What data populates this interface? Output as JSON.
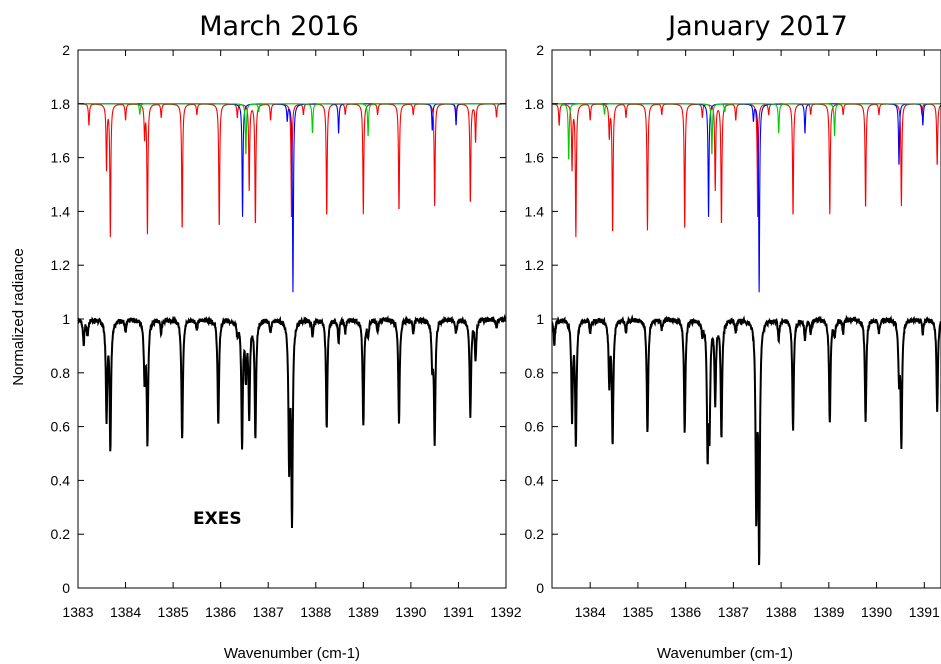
{
  "chart_data": [
    {
      "type": "line",
      "title": "March 2016",
      "xlabel": "Wavenumber (cm-1)",
      "ylabel": "Normalized radiance",
      "xlim": [
        1383,
        1392
      ],
      "ylim": [
        0,
        2
      ],
      "xticks": [
        1383,
        1384,
        1385,
        1386,
        1387,
        1388,
        1389,
        1390,
        1391,
        1392
      ],
      "yticks": [
        0,
        0.2,
        0.4,
        0.6,
        0.8,
        1,
        1.2,
        1.4,
        1.6,
        1.8,
        2
      ],
      "annotation": "EXES",
      "model": {
        "baseline": 1.8,
        "series": [
          {
            "color": "#ff0000",
            "lines": [
              {
                "x": 1383.23,
                "depth": 0.08
              },
              {
                "x": 1383.6,
                "depth": 0.24
              },
              {
                "x": 1383.68,
                "depth": 0.49
              },
              {
                "x": 1384.0,
                "depth": 0.06
              },
              {
                "x": 1384.4,
                "depth": 0.12
              },
              {
                "x": 1384.46,
                "depth": 0.48
              },
              {
                "x": 1384.75,
                "depth": 0.05
              },
              {
                "x": 1385.19,
                "depth": 0.47
              },
              {
                "x": 1385.5,
                "depth": 0.04
              },
              {
                "x": 1385.97,
                "depth": 0.46
              },
              {
                "x": 1386.35,
                "depth": 0.05
              },
              {
                "x": 1386.6,
                "depth": 0.32
              },
              {
                "x": 1386.73,
                "depth": 0.45
              },
              {
                "x": 1387.05,
                "depth": 0.06
              },
              {
                "x": 1387.49,
                "depth": 0.43
              },
              {
                "x": 1387.74,
                "depth": 0.04
              },
              {
                "x": 1388.23,
                "depth": 0.42
              },
              {
                "x": 1388.62,
                "depth": 0.04
              },
              {
                "x": 1389.0,
                "depth": 0.41
              },
              {
                "x": 1389.3,
                "depth": 0.04
              },
              {
                "x": 1389.75,
                "depth": 0.4
              },
              {
                "x": 1390.05,
                "depth": 0.04
              },
              {
                "x": 1390.5,
                "depth": 0.38
              },
              {
                "x": 1390.95,
                "depth": 0.04
              },
              {
                "x": 1391.25,
                "depth": 0.37
              },
              {
                "x": 1391.36,
                "depth": 0.14
              },
              {
                "x": 1391.8,
                "depth": 0.05
              }
            ]
          },
          {
            "color": "#0000ff",
            "lines": [
              {
                "x": 1386.46,
                "depth": 0.42
              },
              {
                "x": 1387.52,
                "depth": 0.7
              },
              {
                "x": 1388.48,
                "depth": 0.11
              },
              {
                "x": 1390.45,
                "depth": 0.1
              },
              {
                "x": 1390.95,
                "depth": 0.08
              },
              {
                "x": 1387.4,
                "depth": 0.06
              }
            ]
          },
          {
            "color": "#00cc00",
            "lines": [
              {
                "x": 1384.3,
                "depth": 0.04
              },
              {
                "x": 1386.53,
                "depth": 0.19
              },
              {
                "x": 1387.93,
                "depth": 0.11
              },
              {
                "x": 1389.1,
                "depth": 0.12
              },
              {
                "x": 1386.8,
                "depth": 0.03
              }
            ]
          }
        ]
      },
      "observed": {
        "name": "EXES",
        "color": "#000000",
        "baseline": 1.0,
        "lines": [
          {
            "x": 1383.12,
            "depth": 0.09
          },
          {
            "x": 1383.2,
            "depth": 0.06
          },
          {
            "x": 1383.6,
            "depth": 0.36
          },
          {
            "x": 1383.68,
            "depth": 0.47
          },
          {
            "x": 1384.0,
            "depth": 0.05
          },
          {
            "x": 1384.4,
            "depth": 0.22
          },
          {
            "x": 1384.46,
            "depth": 0.45
          },
          {
            "x": 1384.75,
            "depth": 0.05
          },
          {
            "x": 1385.19,
            "depth": 0.45
          },
          {
            "x": 1385.5,
            "depth": 0.04
          },
          {
            "x": 1385.95,
            "depth": 0.4
          },
          {
            "x": 1386.35,
            "depth": 0.05
          },
          {
            "x": 1386.45,
            "depth": 0.47
          },
          {
            "x": 1386.53,
            "depth": 0.2
          },
          {
            "x": 1386.6,
            "depth": 0.35
          },
          {
            "x": 1386.73,
            "depth": 0.43
          },
          {
            "x": 1387.05,
            "depth": 0.05
          },
          {
            "x": 1387.44,
            "depth": 0.52
          },
          {
            "x": 1387.5,
            "depth": 0.74
          },
          {
            "x": 1387.93,
            "depth": 0.07
          },
          {
            "x": 1388.23,
            "depth": 0.4
          },
          {
            "x": 1388.48,
            "depth": 0.08
          },
          {
            "x": 1388.62,
            "depth": 0.05
          },
          {
            "x": 1389.0,
            "depth": 0.4
          },
          {
            "x": 1389.1,
            "depth": 0.06
          },
          {
            "x": 1389.3,
            "depth": 0.05
          },
          {
            "x": 1389.75,
            "depth": 0.38
          },
          {
            "x": 1390.05,
            "depth": 0.05
          },
          {
            "x": 1390.45,
            "depth": 0.16
          },
          {
            "x": 1390.5,
            "depth": 0.45
          },
          {
            "x": 1390.95,
            "depth": 0.05
          },
          {
            "x": 1391.25,
            "depth": 0.36
          },
          {
            "x": 1391.36,
            "depth": 0.15
          },
          {
            "x": 1391.8,
            "depth": 0.03
          }
        ]
      }
    },
    {
      "type": "line",
      "title": "January 2017",
      "xlabel": "Wavenumber (cm-1)",
      "ylabel": "",
      "xlim": [
        1383.2,
        1391.35
      ],
      "ylim": [
        0,
        2
      ],
      "xticks": [
        1384,
        1385,
        1386,
        1387,
        1388,
        1389,
        1390,
        1391
      ],
      "yticks": [
        0,
        0.2,
        0.4,
        0.6,
        0.8,
        1,
        1.2,
        1.4,
        1.6,
        1.8,
        2
      ],
      "model": {
        "baseline": 1.8,
        "series": [
          {
            "color": "#ff0000",
            "lines": [
              {
                "x": 1383.35,
                "depth": 0.08
              },
              {
                "x": 1383.62,
                "depth": 0.24
              },
              {
                "x": 1383.7,
                "depth": 0.49
              },
              {
                "x": 1384.0,
                "depth": 0.06
              },
              {
                "x": 1384.4,
                "depth": 0.12
              },
              {
                "x": 1384.47,
                "depth": 0.48
              },
              {
                "x": 1384.75,
                "depth": 0.05
              },
              {
                "x": 1385.2,
                "depth": 0.47
              },
              {
                "x": 1385.5,
                "depth": 0.04
              },
              {
                "x": 1385.98,
                "depth": 0.46
              },
              {
                "x": 1386.35,
                "depth": 0.05
              },
              {
                "x": 1386.62,
                "depth": 0.32
              },
              {
                "x": 1386.75,
                "depth": 0.45
              },
              {
                "x": 1387.05,
                "depth": 0.06
              },
              {
                "x": 1387.51,
                "depth": 0.43
              },
              {
                "x": 1387.74,
                "depth": 0.04
              },
              {
                "x": 1388.25,
                "depth": 0.42
              },
              {
                "x": 1388.62,
                "depth": 0.04
              },
              {
                "x": 1389.02,
                "depth": 0.41
              },
              {
                "x": 1389.3,
                "depth": 0.04
              },
              {
                "x": 1389.77,
                "depth": 0.39
              },
              {
                "x": 1390.05,
                "depth": 0.04
              },
              {
                "x": 1390.52,
                "depth": 0.38
              },
              {
                "x": 1390.95,
                "depth": 0.04
              },
              {
                "x": 1391.27,
                "depth": 0.23
              }
            ]
          },
          {
            "color": "#0000ff",
            "lines": [
              {
                "x": 1386.48,
                "depth": 0.42
              },
              {
                "x": 1387.54,
                "depth": 0.7
              },
              {
                "x": 1388.5,
                "depth": 0.11
              },
              {
                "x": 1390.47,
                "depth": 0.23
              },
              {
                "x": 1390.97,
                "depth": 0.08
              },
              {
                "x": 1387.42,
                "depth": 0.06
              }
            ]
          },
          {
            "color": "#00cc00",
            "lines": [
              {
                "x": 1383.55,
                "depth": 0.21
              },
              {
                "x": 1384.3,
                "depth": 0.04
              },
              {
                "x": 1386.55,
                "depth": 0.19
              },
              {
                "x": 1387.95,
                "depth": 0.11
              },
              {
                "x": 1389.12,
                "depth": 0.12
              },
              {
                "x": 1386.82,
                "depth": 0.03
              }
            ]
          }
        ]
      },
      "observed": {
        "name": "EXES",
        "color": "#000000",
        "baseline": 1.0,
        "lines": [
          {
            "x": 1383.25,
            "depth": 0.09
          },
          {
            "x": 1383.62,
            "depth": 0.36
          },
          {
            "x": 1383.7,
            "depth": 0.46
          },
          {
            "x": 1384.0,
            "depth": 0.05
          },
          {
            "x": 1384.4,
            "depth": 0.23
          },
          {
            "x": 1384.47,
            "depth": 0.46
          },
          {
            "x": 1384.75,
            "depth": 0.05
          },
          {
            "x": 1385.2,
            "depth": 0.43
          },
          {
            "x": 1385.5,
            "depth": 0.04
          },
          {
            "x": 1385.98,
            "depth": 0.42
          },
          {
            "x": 1386.35,
            "depth": 0.05
          },
          {
            "x": 1386.46,
            "depth": 0.47
          },
          {
            "x": 1386.5,
            "depth": 0.38
          },
          {
            "x": 1386.62,
            "depth": 0.3
          },
          {
            "x": 1386.75,
            "depth": 0.43
          },
          {
            "x": 1387.05,
            "depth": 0.05
          },
          {
            "x": 1387.48,
            "depth": 0.71
          },
          {
            "x": 1387.54,
            "depth": 0.86
          },
          {
            "x": 1387.95,
            "depth": 0.07
          },
          {
            "x": 1388.25,
            "depth": 0.41
          },
          {
            "x": 1388.5,
            "depth": 0.08
          },
          {
            "x": 1388.62,
            "depth": 0.05
          },
          {
            "x": 1389.02,
            "depth": 0.39
          },
          {
            "x": 1389.12,
            "depth": 0.06
          },
          {
            "x": 1389.3,
            "depth": 0.05
          },
          {
            "x": 1389.77,
            "depth": 0.38
          },
          {
            "x": 1390.05,
            "depth": 0.05
          },
          {
            "x": 1390.47,
            "depth": 0.2
          },
          {
            "x": 1390.52,
            "depth": 0.46
          },
          {
            "x": 1390.97,
            "depth": 0.05
          },
          {
            "x": 1391.27,
            "depth": 0.34
          }
        ]
      }
    }
  ]
}
